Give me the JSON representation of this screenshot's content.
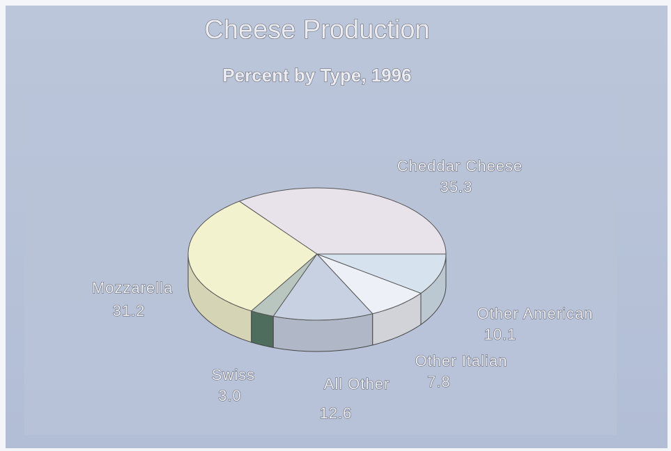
{
  "chart_data": {
    "type": "pie",
    "title": "Cheese Production",
    "subtitle": "Percent by Type, 1996",
    "categories": [
      "Cheddar Cheese",
      "Mozzarella",
      "Swiss",
      "All Other",
      "Other Italian",
      "Other American"
    ],
    "values": [
      35.3,
      31.2,
      3.0,
      12.6,
      7.8,
      10.1
    ],
    "value_labels": [
      "35.3",
      "31.2",
      "3.0",
      "12.6",
      "7.8",
      "10.1"
    ],
    "colors": [
      "#e8e3ea",
      "#f2f2cf",
      "#b9c6c0",
      "#c8d1e2",
      "#eef0f7",
      "#d6e3ee"
    ]
  }
}
